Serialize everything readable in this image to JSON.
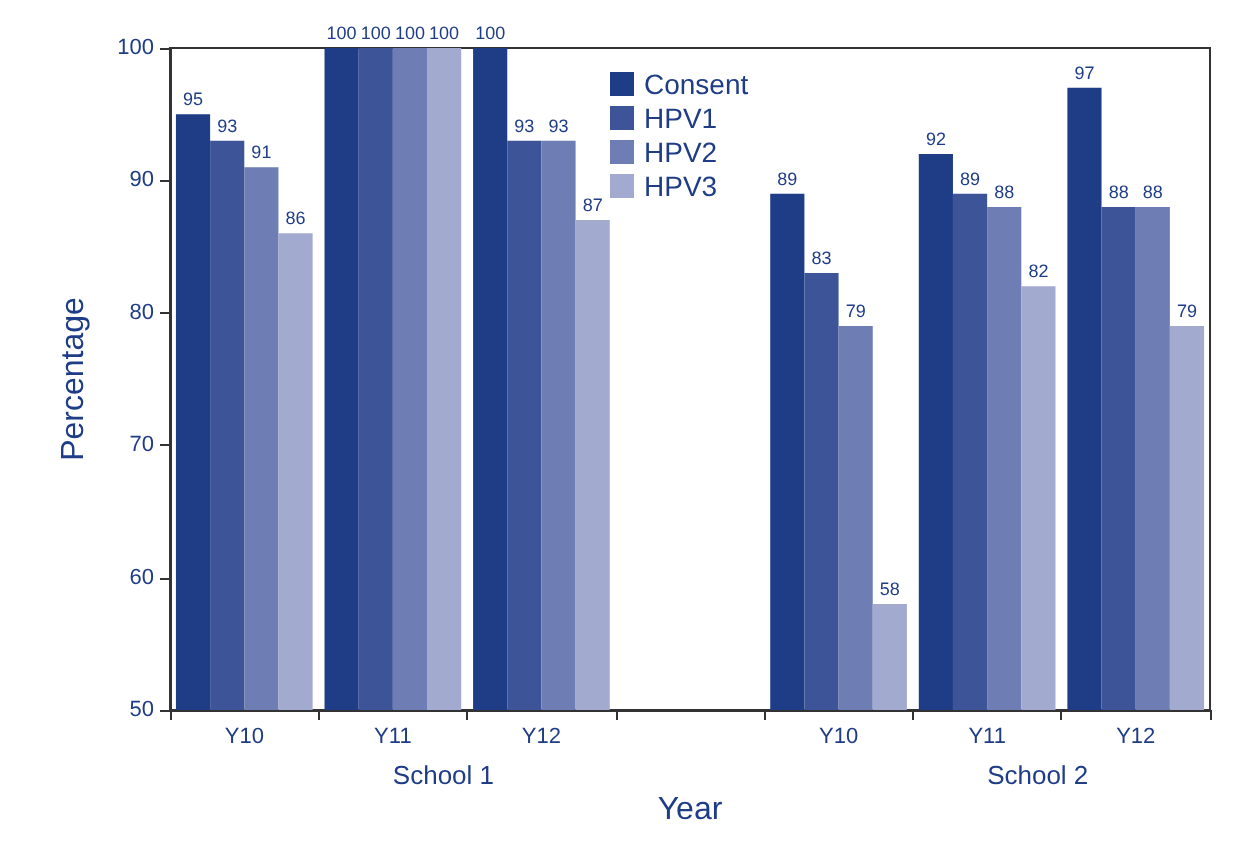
{
  "chart_data": {
    "type": "bar",
    "xlabel": "Year",
    "ylabel": "Percentage",
    "categories": [
      "Y10",
      "Y11",
      "Y12",
      null,
      "Y10",
      "Y11",
      "Y12"
    ],
    "series": [
      {
        "name": "Consent",
        "color": "#1f3d87",
        "values": [
          95,
          100,
          100,
          null,
          89,
          92,
          97
        ]
      },
      {
        "name": "HPV1",
        "color": "#3d5499",
        "values": [
          93,
          100,
          93,
          null,
          83,
          89,
          88
        ]
      },
      {
        "name": "HPV2",
        "color": "#6e7db3",
        "values": [
          91,
          100,
          93,
          null,
          79,
          88,
          88
        ]
      },
      {
        "name": "HPV3",
        "color": "#a2aad0",
        "values": [
          86,
          100,
          87,
          null,
          58,
          82,
          79
        ]
      }
    ],
    "ylim": [
      50,
      100
    ],
    "yticks": [
      50,
      60,
      70,
      80,
      90,
      100
    ],
    "grid": false,
    "legend": "top",
    "data_labels": true,
    "annotations": [
      "School 1",
      "School 2"
    ]
  }
}
